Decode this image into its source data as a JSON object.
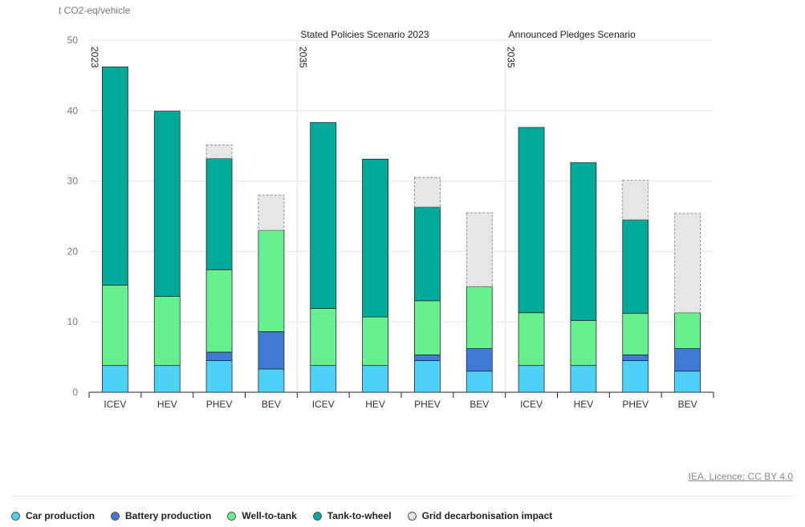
{
  "unit_label": "t CO2-eq/vehicle",
  "credit": "IEA. Licence: CC BY 4.0",
  "colors": {
    "Car production": "#4dd2f5",
    "Battery production": "#3f7bd6",
    "Well-to-tank": "#66f08f",
    "Tank-to-wheel": "#00a99a",
    "Grid decarbonisation impact": "#e6e6e6"
  },
  "chart_data": {
    "type": "bar",
    "stacked": true,
    "ylim": [
      0,
      50
    ],
    "yticks": [
      0,
      10,
      20,
      30,
      40,
      50
    ],
    "grid": true,
    "legend_position": "bottom",
    "groups": [
      {
        "title": "",
        "year": "2023"
      },
      {
        "title": "Stated Policies Scenario 2023",
        "year": "2035"
      },
      {
        "title": "Announced Pledges Scenario",
        "year": "2035"
      }
    ],
    "categories": [
      "ICEV",
      "HEV",
      "PHEV",
      "BEV",
      "ICEV",
      "HEV",
      "PHEV",
      "BEV",
      "ICEV",
      "HEV",
      "PHEV",
      "BEV"
    ],
    "series": [
      {
        "name": "Car production",
        "values": [
          3.8,
          3.8,
          4.5,
          3.3,
          3.8,
          3.8,
          4.5,
          3.0,
          3.8,
          3.8,
          4.5,
          3.0
        ]
      },
      {
        "name": "Battery production",
        "values": [
          0,
          0,
          1.2,
          5.3,
          0,
          0,
          0.8,
          3.2,
          0,
          0,
          0.8,
          3.2
        ]
      },
      {
        "name": "Well-to-tank",
        "values": [
          11.4,
          9.8,
          11.7,
          14.4,
          8.1,
          6.9,
          7.7,
          8.8,
          7.5,
          6.4,
          5.9,
          5.1
        ]
      },
      {
        "name": "Tank-to-wheel",
        "values": [
          31.0,
          26.3,
          15.8,
          0,
          26.4,
          22.4,
          13.3,
          0,
          26.3,
          22.4,
          13.3,
          0
        ]
      },
      {
        "name": "Grid decarbonisation impact",
        "values": [
          0,
          0,
          1.9,
          5.0,
          0,
          0,
          4.2,
          10.5,
          0,
          0,
          5.6,
          14.1
        ]
      }
    ]
  }
}
